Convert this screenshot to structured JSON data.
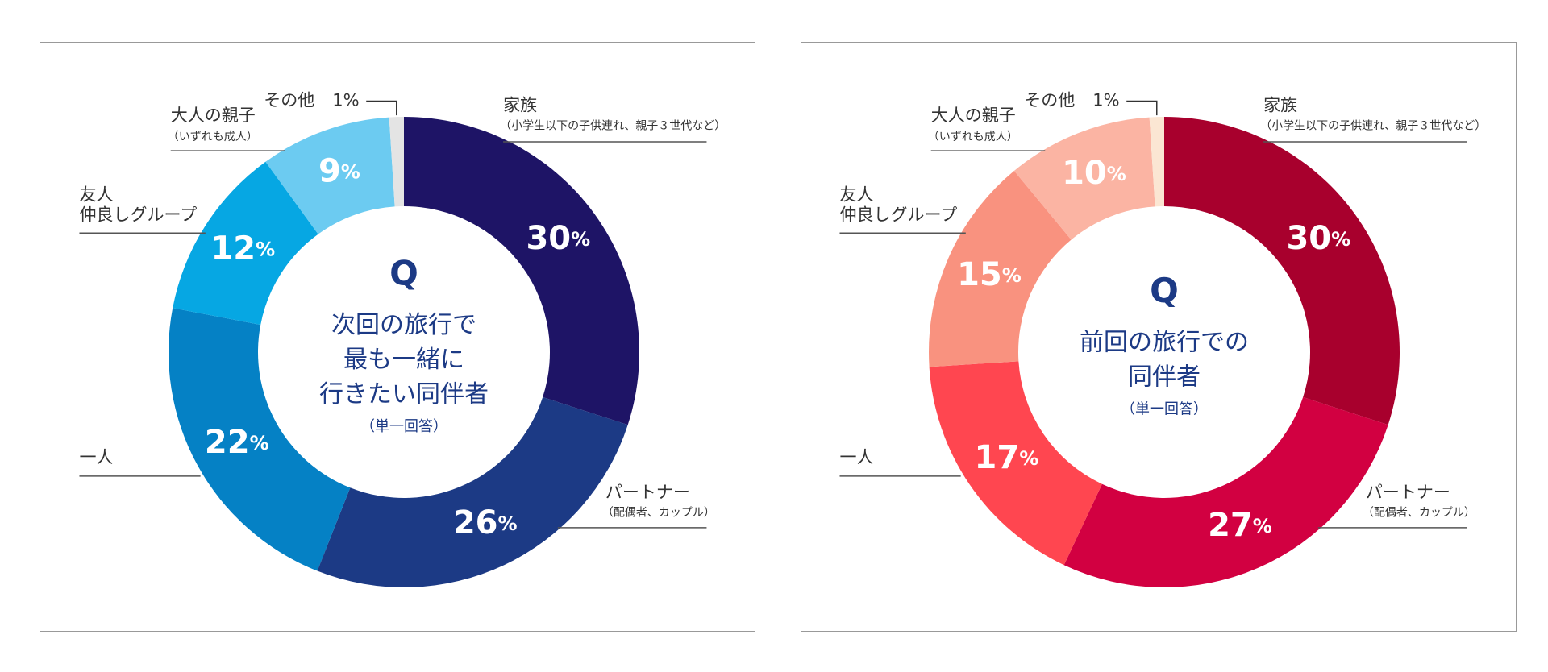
{
  "chart_data": [
    {
      "type": "donut",
      "center_mark": "Q",
      "question": "次回の旅行で\n最も一緒に\n行きたい同伴者",
      "question_note": "（単一回答）",
      "categories": [
        "家族",
        "パートナー",
        "一人",
        "友人\n仲良しグループ",
        "大人の親子",
        "その他"
      ],
      "category_notes": [
        "（小学生以下の子供連れ、親子３世代など）",
        "（配偶者、カップル）",
        null,
        null,
        "（いずれも成人）",
        null
      ],
      "values": [
        30,
        26,
        22,
        12,
        9,
        1
      ],
      "value_labels": [
        "30%",
        "26%",
        "22%",
        "12%",
        "9%",
        "1%"
      ],
      "colors": [
        "#1e1466",
        "#1c3a85",
        "#0581c5",
        "#06a7e3",
        "#6ccbf1",
        "#e4e4e4"
      ]
    },
    {
      "type": "donut",
      "center_mark": "Q",
      "question": "前回の旅行での\n同伴者",
      "question_note": "（単一回答）",
      "categories": [
        "家族",
        "パートナー",
        "一人",
        "友人\n仲良しグループ",
        "大人の親子",
        "その他"
      ],
      "category_notes": [
        "（小学生以下の子供連れ、親子３世代など）",
        "（配偶者、カップル）",
        null,
        null,
        "（いずれも成人）",
        null
      ],
      "values": [
        30,
        27,
        17,
        15,
        10,
        1
      ],
      "value_labels": [
        "30%",
        "27%",
        "17%",
        "15%",
        "10%",
        "1%"
      ],
      "colors": [
        "#a8002d",
        "#d20041",
        "#ff4650",
        "#f9927f",
        "#fbb4a3",
        "#fbe6d3"
      ]
    }
  ]
}
